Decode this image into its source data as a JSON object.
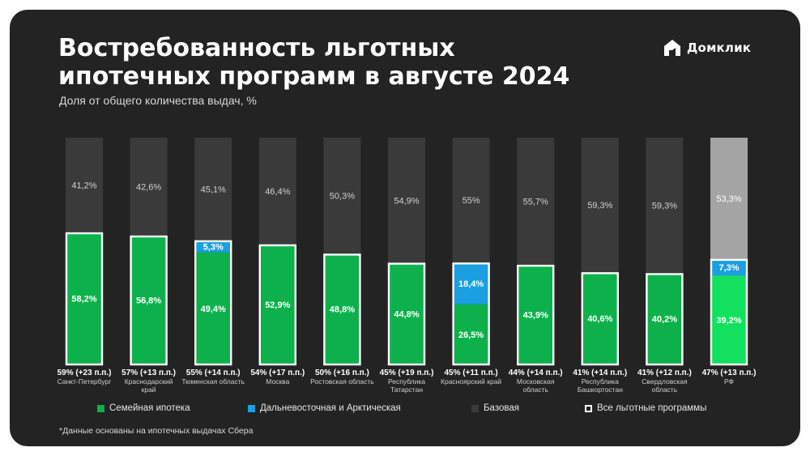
{
  "header": {
    "title_line1": "Востребованность льготных",
    "title_line2": "ипотечных программ в августе 2024",
    "subtitle": "Доля от общего количества выдач, %"
  },
  "logo": {
    "text": "Домклик",
    "icon": "house-logo-icon",
    "color": "#ffffff"
  },
  "colors": {
    "background": "#232323",
    "family": "#0db14b",
    "family_rf": "#12e05e",
    "far_east": "#1a9fe0",
    "base": "#3a3a3a",
    "base_rf": "#a4a4a4",
    "total_outline": "#ffffff"
  },
  "legend": [
    {
      "label": "Семейная ипотека",
      "color": "#0db14b",
      "outline": false
    },
    {
      "label": "Дальневосточная и Арктическая",
      "color": "#1a9fe0",
      "outline": false
    },
    {
      "label": "Базовая",
      "color": "#3a3a3a",
      "outline": false
    },
    {
      "label": "Все льготные программы",
      "color": "#232323",
      "outline": true
    }
  ],
  "footnote": "*Данные основаны на ипотечных выдачах Сбера",
  "chart_data": {
    "type": "bar",
    "stacked": true,
    "ylim": [
      0,
      100
    ],
    "grid": false,
    "legend_position": "bottom",
    "categories": [
      [
        "Санкт-Петербург"
      ],
      [
        "Краснодарский",
        "край"
      ],
      [
        "Тюменская область"
      ],
      [
        "Москва"
      ],
      [
        "Ростовская область"
      ],
      [
        "Республика",
        "Татарстан"
      ],
      [
        "Красноярский край"
      ],
      [
        "Московская",
        "область"
      ],
      [
        "Республика",
        "Башкортостан"
      ],
      [
        "Свердловская",
        "область"
      ],
      [
        "РФ"
      ]
    ],
    "totals": [
      "59% (+23 п.п.)",
      "57% (+13 п.п.)",
      "55% (+14 п.п.)",
      "54% (+17 п.п.)",
      "50% (+16 п.п.)",
      "45% (+19 п.п.)",
      "45% (+11 п.п.)",
      "44% (+14 п.п.)",
      "41% (+14 п.п.)",
      "41% (+12 п.п.)",
      "47% (+13 п.п.)"
    ],
    "series": [
      {
        "name": "Семейная ипотека",
        "values": [
          58.2,
          56.8,
          49.4,
          52.9,
          48.8,
          44.8,
          26.5,
          43.9,
          40.6,
          40.2,
          39.2
        ],
        "labels": [
          "58,2%",
          "56,8%",
          "49,4%",
          "52,9%",
          "48,8%",
          "44,8%",
          "26,5%",
          "43,9%",
          "40,6%",
          "40,2%",
          "39,2%"
        ]
      },
      {
        "name": "Дальневосточная и Арктическая",
        "values": [
          0,
          0,
          5.3,
          0,
          0,
          0,
          18.4,
          0,
          0,
          0,
          7.3
        ],
        "labels": [
          "",
          "",
          "5,3%",
          "",
          "",
          "",
          "18,4%",
          "",
          "",
          "",
          "7,3%"
        ]
      },
      {
        "name": "Базовая",
        "values": [
          41.2,
          42.6,
          45.1,
          46.4,
          50.3,
          54.9,
          55,
          55.7,
          59.3,
          59.3,
          53.3
        ],
        "labels": [
          "41,2%",
          "42,6%",
          "45,1%",
          "46,4%",
          "50,3%",
          "54,9%",
          "55%",
          "55,7%",
          "59,3%",
          "59,3%",
          "53,3%"
        ]
      }
    ]
  }
}
